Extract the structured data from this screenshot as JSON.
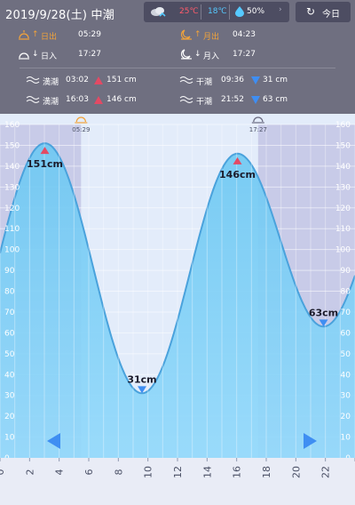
{
  "header": {
    "date_tide": "2019/9/28(土) 中潮",
    "today_button": "今日",
    "weather": {
      "temp_high": "25℃",
      "temp_low": "18℃",
      "precip": "50%",
      "temp_high_color": "#ff5b6b",
      "temp_low_color": "#56c9ff"
    }
  },
  "sun": {
    "sunrise_label": "日出",
    "sunrise_time": "05:29",
    "sunset_label": "日入",
    "sunset_time": "17:27"
  },
  "moon": {
    "moonrise_label": "月出",
    "moonrise_time": "04:23",
    "moonset_label": "月入",
    "moonset_time": "17:27"
  },
  "tides": {
    "high_label": "満潮",
    "low_label": "干潮",
    "high": [
      {
        "time": "03:02",
        "height": "151 cm"
      },
      {
        "time": "16:03",
        "height": "146 cm"
      }
    ],
    "low": [
      {
        "time": "09:36",
        "height": "31 cm"
      },
      {
        "time": "21:52",
        "height": "63 cm"
      }
    ]
  },
  "chart_data": {
    "type": "area",
    "x_ticks": [
      0,
      2,
      4,
      6,
      8,
      10,
      12,
      14,
      16,
      18,
      20,
      22,
      24
    ],
    "x_tick_labels": [
      "0",
      "2",
      "4",
      "6",
      "8",
      "10",
      "12",
      "14",
      "16",
      "18",
      "20",
      "22",
      ""
    ],
    "y_ticks": [
      0,
      10,
      20,
      30,
      40,
      50,
      60,
      70,
      80,
      90,
      100,
      110,
      120,
      130,
      140,
      150,
      160
    ],
    "y_tick_labels": [
      "0",
      "10",
      "20",
      "30",
      "40",
      "50",
      "60",
      "70",
      "80",
      "90",
      "100",
      "110",
      "120",
      "130",
      "140",
      "150",
      "160"
    ],
    "ylim": [
      0,
      160
    ],
    "xlim": [
      0,
      24
    ],
    "extremes": [
      {
        "t": 3.03,
        "h": 151,
        "type": "high",
        "label": "151cm"
      },
      {
        "t": 9.6,
        "h": 31,
        "type": "low",
        "label": "31cm"
      },
      {
        "t": 16.05,
        "h": 146,
        "type": "high",
        "label": "146cm"
      },
      {
        "t": 21.87,
        "h": 63,
        "type": "low",
        "label": "63cm"
      }
    ],
    "sunrise": {
      "t": 5.48,
      "label": "05:29"
    },
    "sunset": {
      "t": 17.45,
      "label": "17:27"
    }
  }
}
